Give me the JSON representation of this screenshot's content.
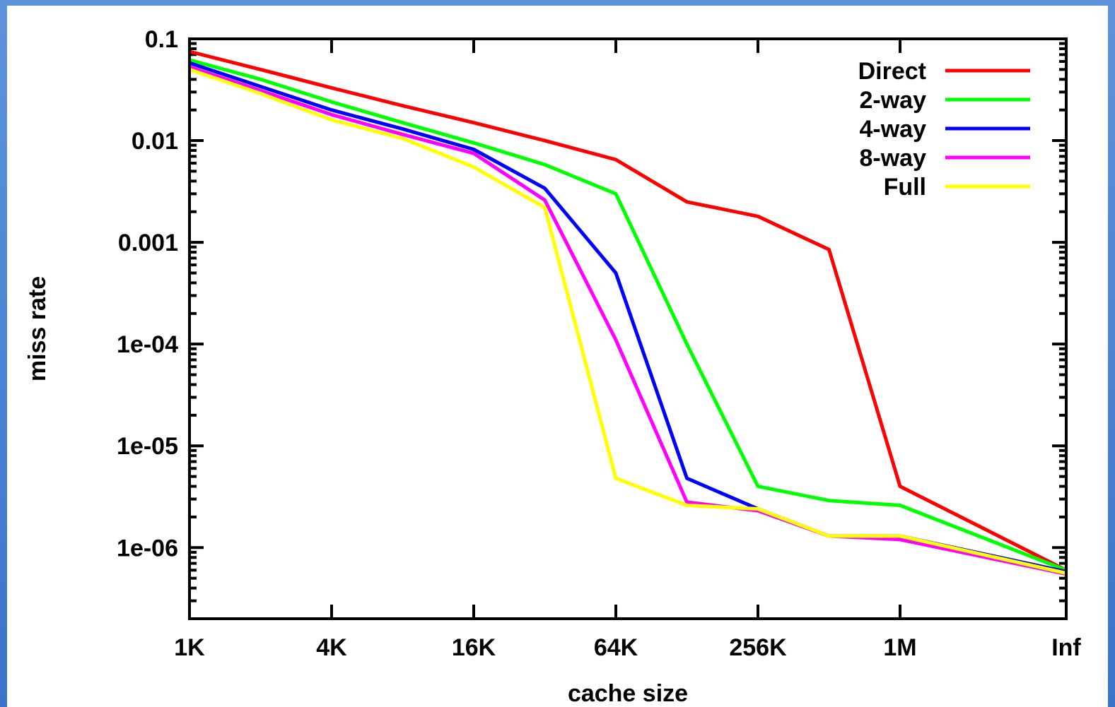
{
  "colors": {
    "frame": "#4a82d2",
    "background": "#ffffff",
    "axis": "#000000"
  },
  "chart_data": {
    "type": "line",
    "xlabel": "cache size",
    "ylabel": "miss rate",
    "y_scale": "log",
    "ylim": [
      2e-07,
      0.1
    ],
    "x_tick_labels": [
      "1K",
      "4K",
      "16K",
      "64K",
      "256K",
      "1M",
      "Inf"
    ],
    "y_tick_values": [
      0.1,
      0.01,
      0.001,
      0.0001,
      1e-05,
      1e-06
    ],
    "y_tick_labels": [
      "0.1",
      "0.01",
      "0.001",
      "1e-04",
      "1e-05",
      "1e-06"
    ],
    "x": [
      "1K",
      "2K",
      "4K",
      "8K",
      "16K",
      "32K",
      "64K",
      "128K",
      "256K",
      "512K",
      "1M",
      "Inf"
    ],
    "grid": false,
    "legend": "top-right",
    "series": [
      {
        "name": "Direct",
        "color": "#ff0000",
        "values": [
          0.075,
          0.05,
          0.033,
          0.022,
          0.015,
          0.01,
          0.0065,
          0.0025,
          0.0018,
          0.00085,
          4e-06,
          6e-07
        ]
      },
      {
        "name": "2-way",
        "color": "#00ff00",
        "values": [
          0.062,
          0.04,
          0.024,
          0.015,
          0.0095,
          0.0058,
          0.003,
          0.0001,
          4e-06,
          2.9e-06,
          2.6e-06,
          6e-07
        ]
      },
      {
        "name": "4-way",
        "color": "#0000ff",
        "values": [
          0.058,
          0.034,
          0.02,
          0.013,
          0.0082,
          0.0034,
          0.0005,
          4.8e-06,
          2.4e-06,
          1.3e-06,
          1.3e-06,
          5.8e-07
        ]
      },
      {
        "name": "8-way",
        "color": "#ff00ff",
        "values": [
          0.053,
          0.031,
          0.018,
          0.0115,
          0.0075,
          0.0026,
          0.00011,
          2.8e-06,
          2.3e-06,
          1.3e-06,
          1.2e-06,
          5.5e-07
        ]
      },
      {
        "name": "Full",
        "color": "#ffff00",
        "values": [
          0.05,
          0.029,
          0.016,
          0.0105,
          0.0055,
          0.0022,
          4.8e-06,
          2.6e-06,
          2.4e-06,
          1.3e-06,
          1.3e-06,
          5.6e-07
        ]
      }
    ]
  }
}
